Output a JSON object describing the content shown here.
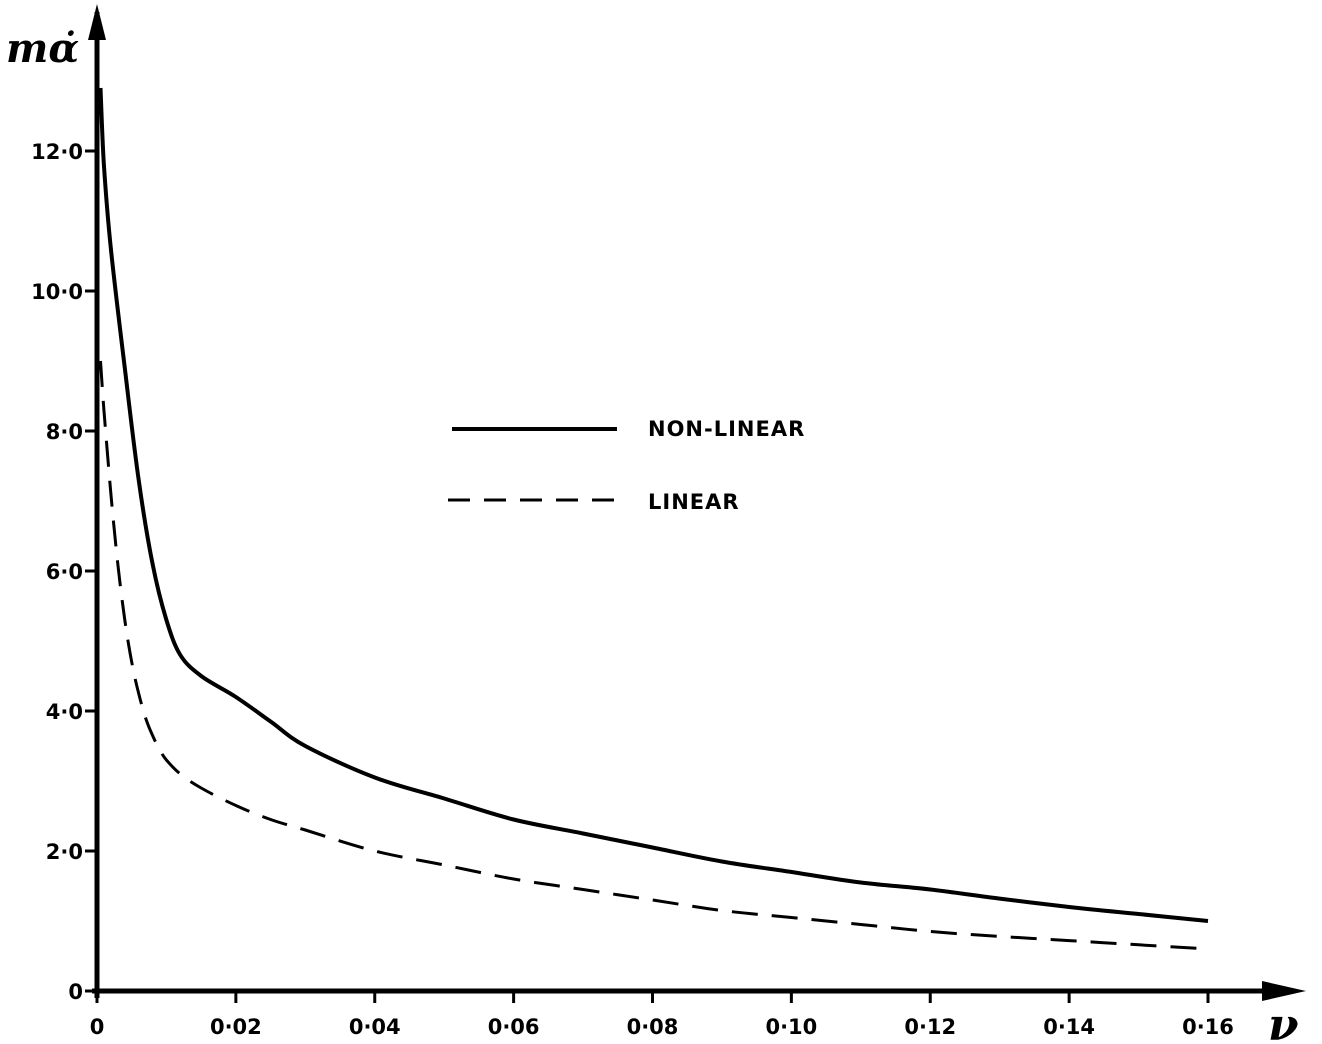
{
  "chart_data": {
    "type": "line",
    "title": "",
    "xlabel": "ν",
    "ylabel": "mα̇",
    "xlim": [
      0,
      0.16
    ],
    "ylim": [
      0,
      12.0
    ],
    "x_ticks": [
      0,
      0.02,
      0.04,
      0.06,
      0.08,
      0.1,
      0.12,
      0.14,
      0.16
    ],
    "x_tick_labels": [
      "0",
      "0·02",
      "0·04",
      "0·06",
      "0·08",
      "0·10",
      "0·12",
      "0·14",
      "0·16"
    ],
    "y_ticks": [
      0,
      2.0,
      4.0,
      6.0,
      8.0,
      10.0,
      12.0
    ],
    "y_tick_labels": [
      "0",
      "2·0",
      "4·0",
      "6·0",
      "8·0",
      "10·0",
      "12·0"
    ],
    "grid": false,
    "legend_position": "center",
    "color": "#000000",
    "series": [
      {
        "name": "NON-LINEAR",
        "style": "solid",
        "x": [
          0.0005,
          0.001,
          0.002,
          0.004,
          0.006,
          0.008,
          0.01,
          0.012,
          0.015,
          0.02,
          0.025,
          0.03,
          0.04,
          0.05,
          0.06,
          0.07,
          0.08,
          0.09,
          0.1,
          0.11,
          0.12,
          0.13,
          0.14,
          0.15,
          0.16
        ],
        "y": [
          12.9,
          11.8,
          10.6,
          8.9,
          7.3,
          6.1,
          5.3,
          4.8,
          4.5,
          4.2,
          3.85,
          3.5,
          3.05,
          2.75,
          2.45,
          2.25,
          2.05,
          1.85,
          1.7,
          1.55,
          1.45,
          1.32,
          1.2,
          1.1,
          1.0
        ]
      },
      {
        "name": "LINEAR",
        "style": "dashed",
        "x": [
          0.0005,
          0.001,
          0.002,
          0.003,
          0.004,
          0.005,
          0.006,
          0.007,
          0.008,
          0.009,
          0.01,
          0.012,
          0.015,
          0.02,
          0.025,
          0.03,
          0.04,
          0.05,
          0.06,
          0.07,
          0.08,
          0.09,
          0.1,
          0.11,
          0.12,
          0.13,
          0.14,
          0.15,
          0.16
        ],
        "y": [
          9.0,
          8.3,
          7.1,
          6.1,
          5.3,
          4.7,
          4.25,
          3.9,
          3.65,
          3.45,
          3.3,
          3.1,
          2.9,
          2.65,
          2.45,
          2.3,
          2.0,
          1.8,
          1.6,
          1.45,
          1.3,
          1.15,
          1.05,
          0.95,
          0.85,
          0.78,
          0.72,
          0.66,
          0.6
        ]
      }
    ]
  }
}
